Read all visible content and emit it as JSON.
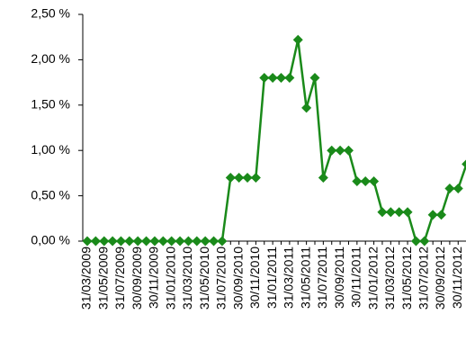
{
  "chart_data": {
    "type": "line",
    "categories": [
      "31/03/2009",
      null,
      "31/05/2009",
      null,
      "31/07/2009",
      null,
      "30/09/2009",
      null,
      "30/11/2009",
      null,
      "31/01/2010",
      null,
      "31/03/2010",
      null,
      "31/05/2010",
      null,
      "31/07/2010",
      null,
      "30/09/2010",
      null,
      "30/11/2010",
      null,
      "31/01/2011",
      null,
      "31/03/2011",
      null,
      "31/05/2011",
      null,
      "31/07/2011",
      null,
      "30/09/2011",
      null,
      "30/11/2011",
      null,
      "31/01/2012",
      null,
      "31/03/2012",
      null,
      "31/05/2012",
      null,
      "31/07/2012",
      null,
      "30/09/2012",
      null,
      "30/11/2012",
      null
    ],
    "values": [
      0,
      0,
      0,
      0,
      0,
      0,
      0,
      0,
      0,
      0,
      0,
      0,
      0,
      0,
      0,
      0,
      0,
      0.7,
      0.7,
      0.7,
      0.7,
      1.8,
      1.8,
      1.8,
      1.8,
      2.22,
      1.47,
      1.8,
      0.7,
      1.0,
      1.0,
      1.0,
      0.66,
      0.66,
      0.66,
      0.32,
      0.32,
      0.32,
      0.32,
      0,
      0,
      0.29,
      0.29,
      0.58,
      0.58,
      0.85
    ],
    "color": "#1a8a1a",
    "ylim": [
      0,
      2.5
    ],
    "yticks": [
      {
        "value": 0,
        "label": "0,00 %"
      },
      {
        "value": 0.5,
        "label": "0,50 %"
      },
      {
        "value": 1,
        "label": "1,00 %"
      },
      {
        "value": 1.5,
        "label": "1,50 %"
      },
      {
        "value": 2,
        "label": "2,00 %"
      },
      {
        "value": 2.5,
        "label": "2,50 %"
      }
    ],
    "grid": false
  }
}
